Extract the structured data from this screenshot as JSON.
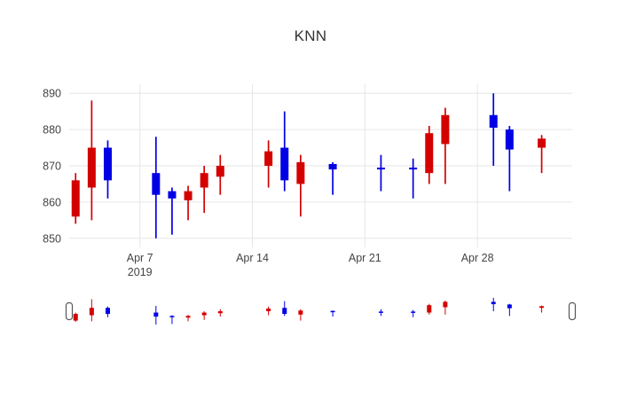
{
  "chart_data": {
    "type": "candlestick",
    "title": "KNN",
    "legend": "none",
    "grid": true,
    "increasing_color": "#0000e6",
    "decreasing_color": "#d40000",
    "grid_color": "#e6e6e6",
    "tick_color": "#444444",
    "ylim": [
      847.5,
      892.5
    ],
    "xlim_days": [
      2.6,
      33.9
    ],
    "y_ticks": [
      850,
      860,
      870,
      880,
      890
    ],
    "x_ticks": [
      {
        "label": "Apr 7",
        "sublabel": "2019",
        "day": 7
      },
      {
        "label": "Apr 14",
        "sublabel": "",
        "day": 14
      },
      {
        "label": "Apr 21",
        "sublabel": "",
        "day": 21
      },
      {
        "label": "Apr 28",
        "sublabel": "",
        "day": 28
      }
    ],
    "candles": [
      {
        "date": "2019-04-03",
        "day": 3,
        "open": 866,
        "high": 868,
        "low": 854,
        "close": 856
      },
      {
        "date": "2019-04-04",
        "day": 4,
        "open": 875,
        "high": 888,
        "low": 855,
        "close": 864
      },
      {
        "date": "2019-04-05",
        "day": 5,
        "open": 866,
        "high": 877,
        "low": 861,
        "close": 875
      },
      {
        "date": "2019-04-08",
        "day": 8,
        "open": 862,
        "high": 878,
        "low": 850,
        "close": 868
      },
      {
        "date": "2019-04-09",
        "day": 9,
        "open": 861,
        "high": 864,
        "low": 851,
        "close": 863
      },
      {
        "date": "2019-04-10",
        "day": 10,
        "open": 863,
        "high": 864.5,
        "low": 855,
        "close": 860.5
      },
      {
        "date": "2019-04-11",
        "day": 11,
        "open": 868,
        "high": 870,
        "low": 857,
        "close": 864
      },
      {
        "date": "2019-04-12",
        "day": 12,
        "open": 870,
        "high": 873,
        "low": 862,
        "close": 867
      },
      {
        "date": "2019-04-15",
        "day": 15,
        "open": 874,
        "high": 877,
        "low": 864,
        "close": 870
      },
      {
        "date": "2019-04-16",
        "day": 16,
        "open": 866,
        "high": 885,
        "low": 863,
        "close": 875
      },
      {
        "date": "2019-04-17",
        "day": 17,
        "open": 871,
        "high": 873,
        "low": 856,
        "close": 865
      },
      {
        "date": "2019-04-19",
        "day": 19,
        "open": 869,
        "high": 871,
        "low": 862,
        "close": 870.5
      },
      {
        "date": "2019-04-22",
        "day": 22,
        "open": 869,
        "high": 873,
        "low": 863,
        "close": 869.5
      },
      {
        "date": "2019-04-24",
        "day": 24,
        "open": 869,
        "high": 872,
        "low": 861,
        "close": 869.5
      },
      {
        "date": "2019-04-25",
        "day": 25,
        "open": 879,
        "high": 881,
        "low": 865,
        "close": 868
      },
      {
        "date": "2019-04-26",
        "day": 26,
        "open": 884,
        "high": 886,
        "low": 865,
        "close": 876
      },
      {
        "date": "2019-04-29",
        "day": 29,
        "open": 880.5,
        "high": 890,
        "low": 870,
        "close": 884
      },
      {
        "date": "2019-04-30",
        "day": 30,
        "open": 874.5,
        "high": 881,
        "low": 863,
        "close": 880
      },
      {
        "date": "2019-05-02",
        "day": 32,
        "open": 877.5,
        "high": 878.5,
        "low": 868,
        "close": 875
      }
    ]
  }
}
